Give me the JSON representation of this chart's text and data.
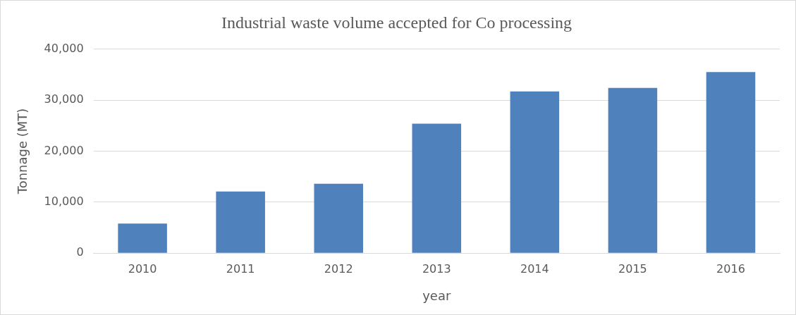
{
  "chart_data": {
    "type": "bar",
    "title": "Industrial waste volume accepted for Co processing",
    "xlabel": "year",
    "ylabel": "Tonnage (MT)",
    "categories": [
      "2010",
      "2011",
      "2012",
      "2013",
      "2014",
      "2015",
      "2016"
    ],
    "values": [
      5800,
      12100,
      13600,
      25400,
      31700,
      32400,
      35500
    ],
    "color": "#4f81bd",
    "ylim": [
      0,
      40000
    ],
    "yticks": [
      {
        "value": 0,
        "label": "0"
      },
      {
        "value": 10000,
        "label": "10,000"
      },
      {
        "value": 20000,
        "label": "20,000"
      },
      {
        "value": 30000,
        "label": "30,000"
      },
      {
        "value": 40000,
        "label": "40,000"
      }
    ],
    "grid": "y",
    "legend": false
  }
}
